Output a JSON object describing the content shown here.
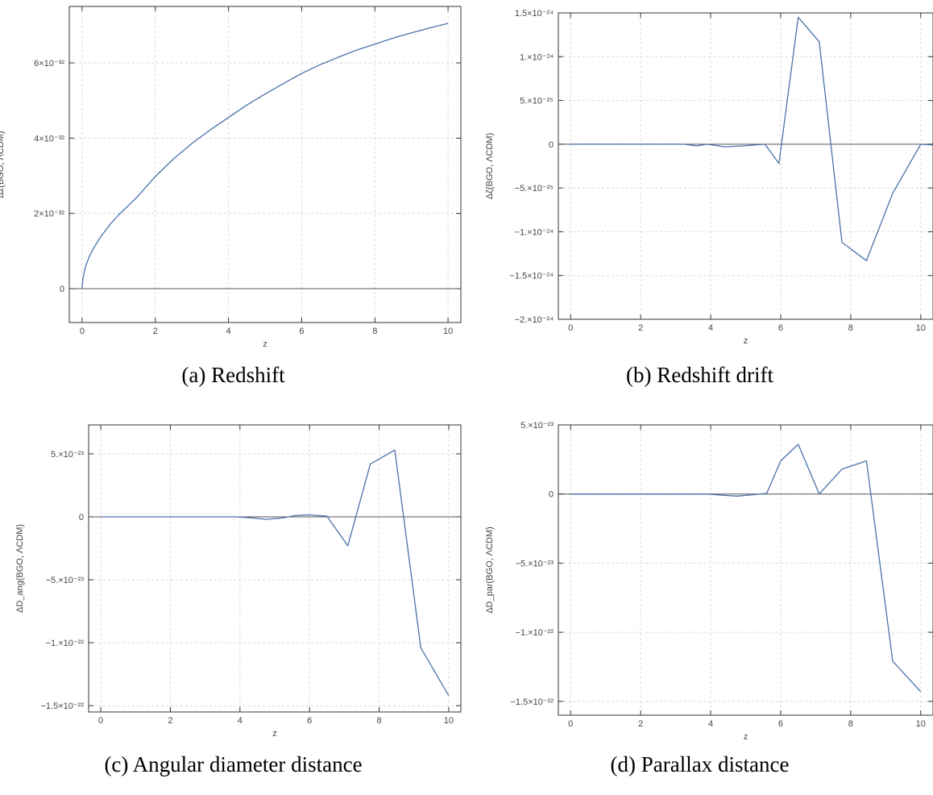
{
  "chart_data": [
    {
      "type": "line",
      "caption": "(a) Redshift",
      "xlabel": "z",
      "ylabel": "Δz(BGO, ΛCDM)",
      "xlim": [
        -0.35,
        10.35
      ],
      "ylim": [
        -9e-33,
        7.5e-32
      ],
      "xticks": [
        0,
        2,
        4,
        6,
        8,
        10
      ],
      "yticks": [
        {
          "v": 0,
          "label": "0"
        },
        {
          "v": 2e-32,
          "label": "2×10⁻³²"
        },
        {
          "v": 4e-32,
          "label": "4×10⁻³²"
        },
        {
          "v": 6e-32,
          "label": "6×10⁻³²"
        }
      ],
      "grid": true,
      "zero_line": true,
      "series": [
        {
          "x": [
            0,
            0.02,
            0.05,
            0.1,
            0.2,
            0.3,
            0.5,
            0.75,
            1,
            1.5,
            2,
            2.5,
            3,
            3.5,
            4,
            4.5,
            5,
            5.5,
            6,
            6.5,
            7,
            7.5,
            8,
            8.5,
            9,
            9.5,
            10
          ],
          "y": [
            0,
            2.4e-33,
            4.1e-33,
            6e-33,
            8.6e-33,
            1.05e-32,
            1.37e-32,
            1.69e-32,
            1.96e-32,
            2.43e-32,
            2.98e-32,
            3.45e-32,
            3.86e-32,
            4.22e-32,
            4.55e-32,
            4.88e-32,
            5.17e-32,
            5.45e-32,
            5.72e-32,
            5.95e-32,
            6.15e-32,
            6.34e-32,
            6.5e-32,
            6.66e-32,
            6.8e-32,
            6.93e-32,
            7.05e-32
          ]
        }
      ]
    },
    {
      "type": "line",
      "caption": "(b) Redshift drift",
      "xlabel": "z",
      "ylabel": "Δζ(BGO, ΛCDM)",
      "xlim": [
        -0.35,
        10.35
      ],
      "ylim": [
        -2e-24,
        1.5e-24
      ],
      "xticks": [
        0,
        2,
        4,
        6,
        8,
        10
      ],
      "yticks": [
        {
          "v": 1.5e-24,
          "label": "1.5×10⁻²⁴"
        },
        {
          "v": 1e-24,
          "label": "1.×10⁻²⁴"
        },
        {
          "v": 5e-25,
          "label": "5.×10⁻²⁵"
        },
        {
          "v": 0,
          "label": "0"
        },
        {
          "v": -5e-25,
          "label": "−5.×10⁻²⁵"
        },
        {
          "v": -1e-24,
          "label": "−1.×10⁻²⁴"
        },
        {
          "v": -1.5e-24,
          "label": "−1.5×10⁻²⁴"
        },
        {
          "v": -2e-24,
          "label": "−2.×10⁻²⁴"
        }
      ],
      "grid": true,
      "zero_line": true,
      "series": [
        {
          "x": [
            0,
            0.65,
            1.3,
            1.95,
            2.6,
            3.25,
            3.6,
            3.9,
            4.4,
            4.9,
            5.55,
            5.95,
            6.5,
            7.1,
            7.75,
            8.45,
            9.2,
            10,
            10.4
          ],
          "y": [
            0,
            0,
            0,
            0,
            0,
            0,
            -2e-26,
            0,
            -3e-26,
            -2e-26,
            0,
            -2.2e-25,
            1.45e-24,
            1.17e-24,
            -1.12e-24,
            -1.33e-24,
            -5.6e-25,
            0,
            -1e-26
          ]
        }
      ]
    },
    {
      "type": "line",
      "caption": "(c) Angular diameter distance",
      "xlabel": "z",
      "ylabel": "ΔD_ang(BGO, ΛCDM)",
      "xlim": [
        -0.35,
        10.35
      ],
      "ylim": [
        -1.55e-22,
        7.3e-23
      ],
      "xticks": [
        0,
        2,
        4,
        6,
        8,
        10
      ],
      "yticks": [
        {
          "v": 5e-23,
          "label": "5.×10⁻²³"
        },
        {
          "v": 0,
          "label": "0"
        },
        {
          "v": -5e-23,
          "label": "−5.×10⁻²³"
        },
        {
          "v": -1e-22,
          "label": "−1.×10⁻²²"
        },
        {
          "v": -1.5e-22,
          "label": "−1.5×10⁻²²"
        }
      ],
      "grid": true,
      "zero_line": true,
      "series": [
        {
          "x": [
            0,
            0.65,
            1.3,
            1.95,
            2.6,
            3.25,
            3.9,
            4.4,
            4.75,
            5.2,
            5.6,
            6.0,
            6.5,
            7.1,
            7.75,
            8.45,
            9.2,
            10
          ],
          "y": [
            0,
            0,
            0,
            0,
            0,
            0,
            0,
            -1e-24,
            -2e-24,
            -1e-24,
            1e-24,
            1.5e-24,
            5e-25,
            -2.3e-23,
            4.2e-23,
            5.3e-23,
            -1.04e-22,
            -1.42e-22
          ]
        }
      ]
    },
    {
      "type": "line",
      "caption": "(d) Parallax distance",
      "xlabel": "z",
      "ylabel": "ΔD_par(BGO, ΛCDM)",
      "xlim": [
        -0.35,
        10.35
      ],
      "ylim": [
        -1.6e-22,
        5e-23
      ],
      "xticks": [
        0,
        2,
        4,
        6,
        8,
        10
      ],
      "yticks": [
        {
          "v": 5e-23,
          "label": "5.×10⁻²³"
        },
        {
          "v": 0,
          "label": "0"
        },
        {
          "v": -5e-23,
          "label": "−5.×10⁻²³"
        },
        {
          "v": -1e-22,
          "label": "−1.×10⁻²²"
        },
        {
          "v": -1.5e-22,
          "label": "−1.5×10⁻²²"
        }
      ],
      "grid": true,
      "zero_line": true,
      "series": [
        {
          "x": [
            0,
            0.65,
            1.3,
            1.95,
            2.6,
            3.25,
            3.9,
            4.4,
            4.75,
            5.2,
            5.6,
            6.0,
            6.5,
            7.1,
            7.75,
            8.45,
            9.2,
            10
          ],
          "y": [
            0,
            0,
            0,
            0,
            0,
            0,
            0,
            -1e-24,
            -1.5e-24,
            -5e-25,
            5e-25,
            2.4e-23,
            3.6e-23,
            0,
            1.8e-23,
            2.4e-23,
            -1.21e-22,
            -1.43e-22
          ]
        }
      ]
    }
  ],
  "style": {
    "line_color": "#4a72a8",
    "zero_line_color": "#555555",
    "grid_color": "#d9d9d9",
    "frame_color": "#333333"
  }
}
